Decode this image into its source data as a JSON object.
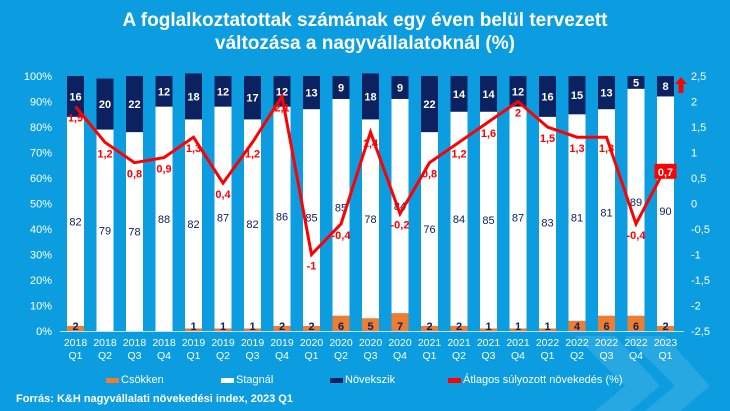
{
  "title_line1": "A foglalkoztatottak számának egy éven belül tervezett",
  "title_line2": "változása a nagyvállalatoknál (%)",
  "source": "Forrás: K&H nagyvállalati növekedési index, 2023 Q1",
  "colors": {
    "background": "#0b9de0",
    "csokken": "#ee7d31",
    "stagnal": "#ffffff",
    "novekszik": "#0c2260",
    "line": "#ff0000",
    "highlight_label_bg": "#ff0000"
  },
  "legend": [
    {
      "key": "csokken",
      "label": "Csökken"
    },
    {
      "key": "stagnal",
      "label": "Stagnál"
    },
    {
      "key": "novekszik",
      "label": "Növekszik"
    },
    {
      "key": "line",
      "label": "Átlagos súlyozott növekedés (%)"
    }
  ],
  "chart_data": {
    "type": "bar",
    "stacked": true,
    "title": "A foglalkoztatottak számának egy éven belül tervezett változása a nagyvállalatoknál (%)",
    "categories": [
      [
        "2018",
        "Q1"
      ],
      [
        "2018",
        "Q2"
      ],
      [
        "2018",
        "Q3"
      ],
      [
        "2018",
        "Q4"
      ],
      [
        "2019",
        "Q1"
      ],
      [
        "2019",
        "Q2"
      ],
      [
        "2019",
        "Q3"
      ],
      [
        "2019",
        "Q4"
      ],
      [
        "2020",
        "Q1"
      ],
      [
        "2020",
        "Q2"
      ],
      [
        "2020",
        "Q3"
      ],
      [
        "2020",
        "Q4"
      ],
      [
        "2021",
        "Q1"
      ],
      [
        "2021",
        "Q2"
      ],
      [
        "2021",
        "Q3"
      ],
      [
        "2021",
        "Q4"
      ],
      [
        "2022",
        "Q1"
      ],
      [
        "2022",
        "Q2"
      ],
      [
        "2022",
        "Q3"
      ],
      [
        "2022",
        "Q4"
      ],
      [
        "2023",
        "Q1"
      ]
    ],
    "series": [
      {
        "name": "Csökken",
        "key": "csokken",
        "axis": "left",
        "values": [
          2,
          0,
          0,
          0,
          1,
          1,
          1,
          2,
          2,
          6,
          5,
          7,
          2,
          2,
          1,
          1,
          1,
          4,
          6,
          6,
          2
        ]
      },
      {
        "name": "Stagnál",
        "key": "stagnal",
        "axis": "left",
        "values": [
          82,
          79,
          78,
          88,
          82,
          87,
          82,
          86,
          85,
          85,
          78,
          84,
          76,
          84,
          85,
          87,
          83,
          81,
          81,
          89,
          90
        ]
      },
      {
        "name": "Növekszik",
        "key": "novekszik",
        "axis": "left",
        "values": [
          16,
          20,
          22,
          12,
          18,
          12,
          17,
          12,
          13,
          9,
          18,
          9,
          22,
          14,
          14,
          12,
          16,
          15,
          13,
          5,
          8
        ]
      },
      {
        "name": "Átlagos súlyozott növekedés (%)",
        "key": "line",
        "type": "line",
        "axis": "right",
        "values": [
          1.9,
          1.2,
          0.8,
          0.9,
          1.3,
          0.4,
          1.2,
          2.1,
          -1,
          -0.4,
          1.4,
          -0.2,
          0.8,
          1.2,
          1.6,
          2,
          1.5,
          1.3,
          1.3,
          -0.4,
          0.7
        ],
        "labels": [
          "1,9",
          "1,2",
          "0,8",
          "0,9",
          "1,3",
          "0,4",
          "1,2",
          "2,1",
          "-1",
          "-0,4",
          "1,4",
          "-0,2",
          "0,8",
          "1,2",
          "1,6",
          "2",
          "1,5",
          "1,3",
          "1,3",
          "-0,4",
          "0,7"
        ],
        "highlight_last": true
      }
    ],
    "y_left": {
      "min": 0,
      "max": 100,
      "ticks": [
        "0%",
        "10%",
        "20%",
        "30%",
        "40%",
        "50%",
        "60%",
        "70%",
        "80%",
        "90%",
        "100%"
      ]
    },
    "y_right": {
      "min": -2.5,
      "max": 2.5,
      "ticks": [
        "-2,5",
        "-2",
        "-1,5",
        "-1",
        "-0,5",
        "0",
        "0,5",
        "1",
        "1,5",
        "2",
        "2,5"
      ]
    },
    "legend_position": "bottom",
    "annotation": "up-arrow next to last bar",
    "grid": false
  }
}
